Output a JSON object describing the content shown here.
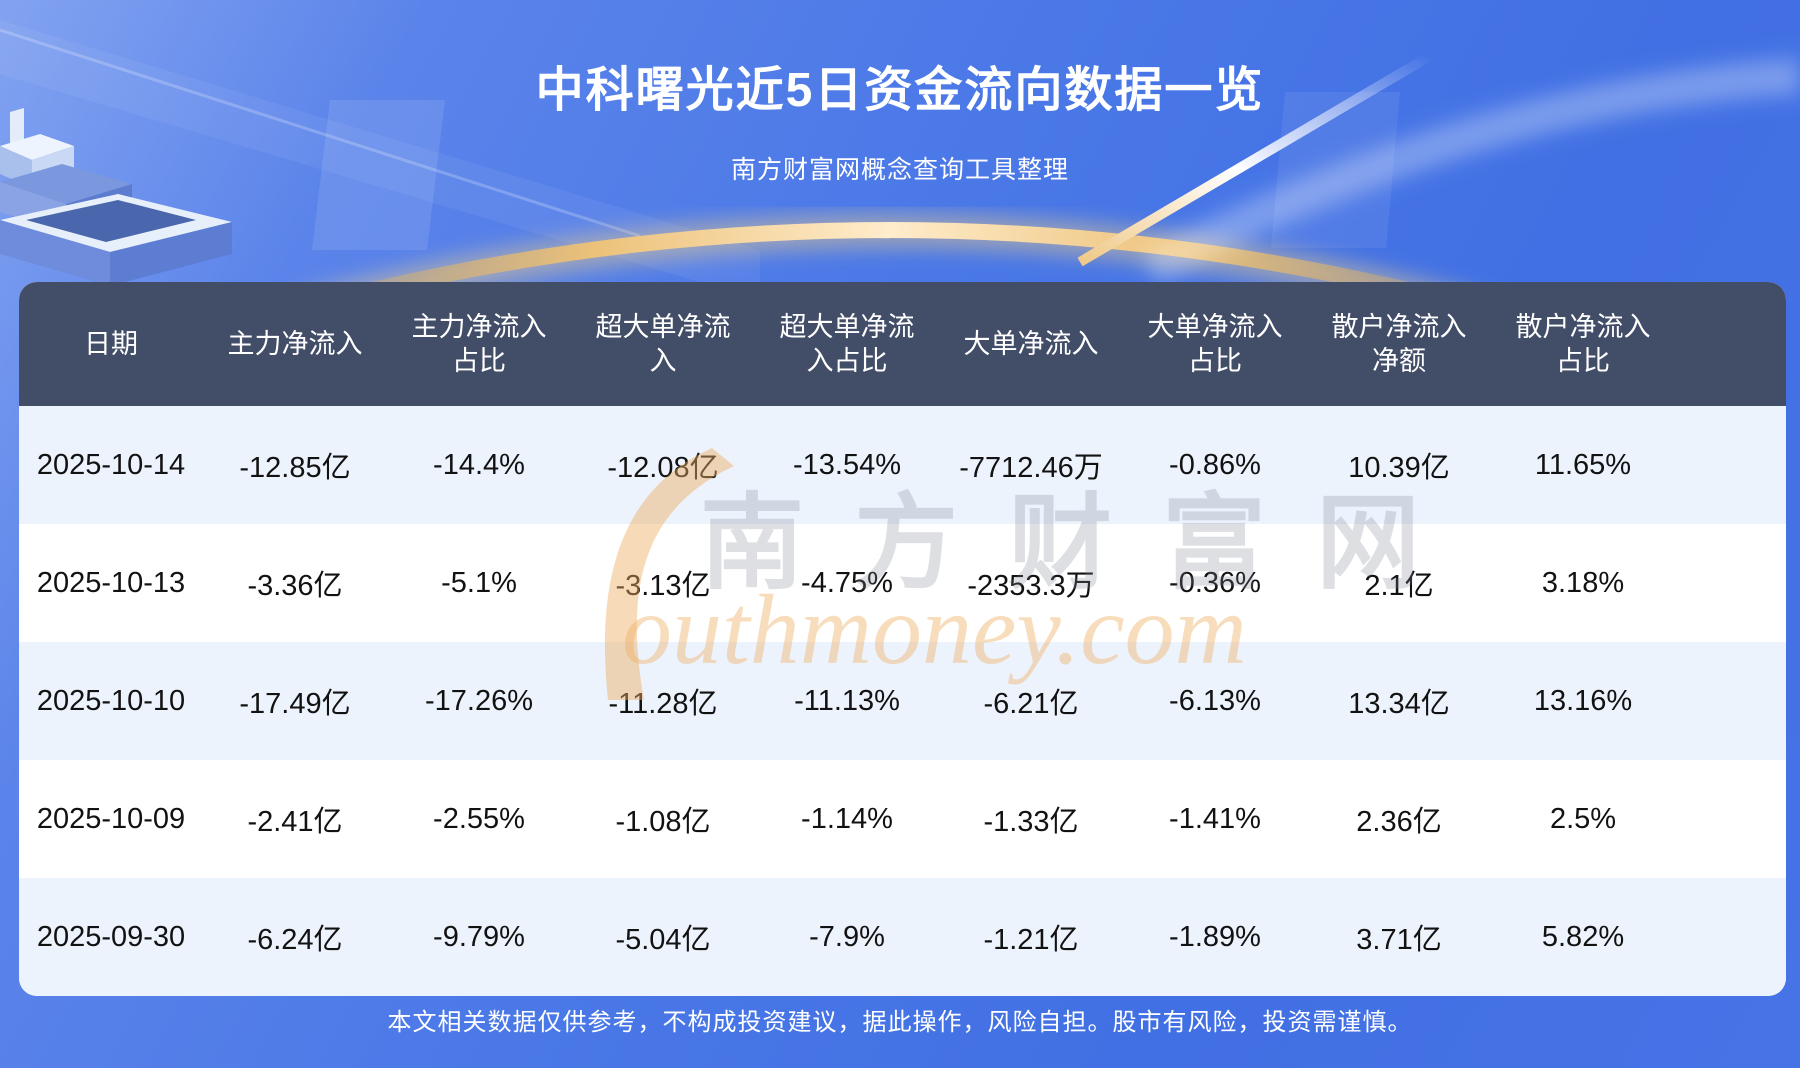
{
  "page": {
    "title": "中科曙光近5日资金流向数据一览",
    "subtitle": "南方财富网概念查询工具整理",
    "disclaimer": "本文相关数据仅供参考，不构成投资建议，据此操作，风险自担。股市有风险，投资需谨慎。"
  },
  "watermark": {
    "cn": "南方财富网",
    "en": "Southmoney.com"
  },
  "colors": {
    "background_blue": "#4673e6",
    "header_bg": "#424d68",
    "row_alt_bg": "#edf3fc",
    "row_bg": "#ffffff",
    "title_text": "#ffffff",
    "cell_text": "#121212",
    "gold_arc": "#ecc27a",
    "watermark_orange": "#eead62"
  },
  "chart_data": {
    "type": "table",
    "title": "中科曙光近5日资金流向数据一览",
    "subtitle": "南方财富网概念查询工具整理",
    "headers": [
      "日期",
      "主力净流入",
      "主力净流入\n占比",
      "超大单净流\n入",
      "超大单净流\n入占比",
      "大单净流入",
      "大单净流入\n占比",
      "散户净流入\n净额",
      "散户净流入\n占比"
    ],
    "rows": [
      [
        "2025-10-14",
        "-12.85亿",
        "-14.4%",
        "-12.08亿",
        "-13.54%",
        "-7712.46万",
        "-0.86%",
        "10.39亿",
        "11.65%"
      ],
      [
        "2025-10-13",
        "-3.36亿",
        "-5.1%",
        "-3.13亿",
        "-4.75%",
        "-2353.3万",
        "-0.36%",
        "2.1亿",
        "3.18%"
      ],
      [
        "2025-10-10",
        "-17.49亿",
        "-17.26%",
        "-11.28亿",
        "-11.13%",
        "-6.21亿",
        "-6.13%",
        "13.34亿",
        "13.16%"
      ],
      [
        "2025-10-09",
        "-2.41亿",
        "-2.55%",
        "-1.08亿",
        "-1.14%",
        "-1.33亿",
        "-1.41%",
        "2.36亿",
        "2.5%"
      ],
      [
        "2025-09-30",
        "-6.24亿",
        "-9.79%",
        "-5.04亿",
        "-7.9%",
        "-1.21亿",
        "-1.89%",
        "3.71亿",
        "5.82%"
      ]
    ]
  }
}
